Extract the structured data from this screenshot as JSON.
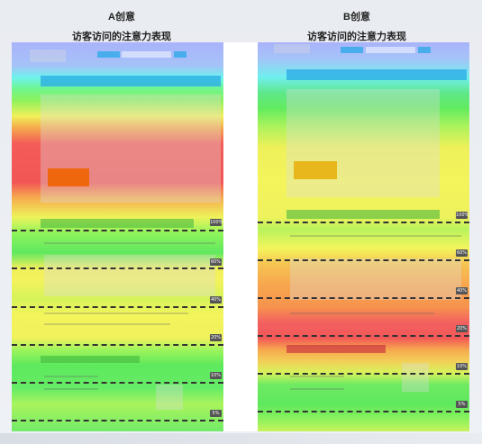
{
  "panels": [
    {
      "label": "A创意",
      "subtitle": "访客访问的注意力表现",
      "markers": [
        "100%",
        "60%",
        "40%",
        "20%",
        "10%",
        "5%"
      ]
    },
    {
      "label": "B创意",
      "subtitle": "访客访问的注意力表现",
      "markers": [
        "100%",
        "60%",
        "40%",
        "20%",
        "10%",
        "5%"
      ]
    }
  ],
  "colors": {
    "cool": "#a8b4ff",
    "cyan": "#6ff0f0",
    "green": "#58e858",
    "yellow": "#f5f55a",
    "orange": "#f7a64a",
    "red": "#f45a5a"
  }
}
